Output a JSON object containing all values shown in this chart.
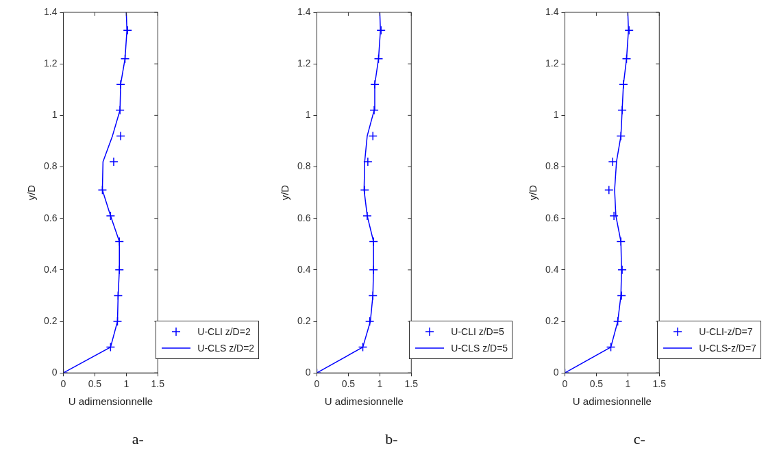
{
  "chart_data": [
    {
      "type": "scatter",
      "xlabel": "U adimensionnelle",
      "ylabel": "y/D",
      "xlim": [
        0,
        1.5
      ],
      "xticks": [
        0,
        0.5,
        1,
        1.5
      ],
      "ylim": [
        0,
        1.4
      ],
      "yticks": [
        0,
        0.2,
        0.4,
        0.6,
        0.8,
        1,
        1.2,
        1.4
      ],
      "grid": false,
      "legend": "bottom right",
      "annotations": [
        "a-"
      ],
      "series": [
        {
          "name": "U-CLI z/D=2",
          "type": "scatter",
          "marker": "cross",
          "color": "#0000ff",
          "x": [
            0,
            0.75,
            0.86,
            0.87,
            0.89,
            0.89,
            0.75,
            0.62,
            0.8,
            0.91,
            0.9,
            0.91,
            0.98,
            1.02
          ],
          "values": [
            0,
            0.1,
            0.2,
            0.3,
            0.4,
            0.51,
            0.61,
            0.71,
            0.82,
            0.92,
            1.02,
            1.12,
            1.22,
            1.33
          ]
        },
        {
          "name": "U-CLS z/D=2",
          "type": "line",
          "marker": "none",
          "line_style": "solid",
          "color": "#0000ff",
          "x": [
            0,
            0.75,
            0.86,
            0.87,
            0.89,
            0.89,
            0.75,
            0.62,
            0.63,
            0.78,
            0.9,
            0.91,
            0.98,
            1.01,
            1
          ],
          "values": [
            0,
            0.1,
            0.2,
            0.3,
            0.4,
            0.51,
            0.61,
            0.71,
            0.82,
            0.92,
            1.02,
            1.12,
            1.22,
            1.33,
            1.4
          ]
        }
      ]
    },
    {
      "type": "scatter",
      "xlabel": "U adimesionnelle",
      "ylabel": "y/D",
      "xlim": [
        0,
        1.5
      ],
      "xticks": [
        0,
        0.5,
        1,
        1.5
      ],
      "ylim": [
        0,
        1.4
      ],
      "yticks": [
        0,
        0.2,
        0.4,
        0.6,
        0.8,
        1,
        1.2,
        1.4
      ],
      "grid": false,
      "legend": "bottom right",
      "annotations": [
        "b-"
      ],
      "series": [
        {
          "name": "U-CLI z/D=5",
          "type": "scatter",
          "marker": "cross",
          "color": "#0000ff",
          "x": [
            0,
            0.73,
            0.84,
            0.89,
            0.9,
            0.9,
            0.8,
            0.76,
            0.81,
            0.89,
            0.91,
            0.92,
            0.98,
            1.02
          ],
          "values": [
            0,
            0.1,
            0.2,
            0.3,
            0.4,
            0.51,
            0.61,
            0.71,
            0.82,
            0.92,
            1.02,
            1.12,
            1.22,
            1.33
          ]
        },
        {
          "name": "U-CLS z/D=5",
          "type": "line",
          "marker": "none",
          "line_style": "solid",
          "color": "#0000ff",
          "x": [
            0,
            0.73,
            0.85,
            0.89,
            0.9,
            0.9,
            0.8,
            0.75,
            0.76,
            0.8,
            0.91,
            0.92,
            0.98,
            1.01,
            1
          ],
          "values": [
            0,
            0.1,
            0.2,
            0.3,
            0.4,
            0.51,
            0.61,
            0.71,
            0.82,
            0.92,
            1.02,
            1.12,
            1.22,
            1.33,
            1.4
          ]
        }
      ]
    },
    {
      "type": "scatter",
      "xlabel": "U adimesionnelle",
      "ylabel": "y/D",
      "xlim": [
        0,
        1.5
      ],
      "xticks": [
        0,
        0.5,
        1,
        1.5
      ],
      "ylim": [
        0,
        1.4
      ],
      "yticks": [
        0,
        0.2,
        0.4,
        0.6,
        0.8,
        1,
        1.2,
        1.4
      ],
      "grid": false,
      "legend": "bottom right",
      "annotations": [
        "c-"
      ],
      "series": [
        {
          "name": "U-CLI-z/D=7",
          "type": "scatter",
          "marker": "cross",
          "color": "#0000ff",
          "x": [
            0,
            0.73,
            0.84,
            0.9,
            0.91,
            0.89,
            0.78,
            0.7,
            0.76,
            0.89,
            0.91,
            0.93,
            0.98,
            1.02
          ],
          "values": [
            0,
            0.1,
            0.2,
            0.3,
            0.4,
            0.51,
            0.61,
            0.71,
            0.82,
            0.92,
            1.02,
            1.12,
            1.22,
            1.33
          ]
        },
        {
          "name": "U-CLS-z/D=7",
          "type": "line",
          "marker": "none",
          "line_style": "solid",
          "color": "#0000ff",
          "x": [
            0,
            0.73,
            0.84,
            0.89,
            0.9,
            0.89,
            0.81,
            0.79,
            0.82,
            0.89,
            0.91,
            0.93,
            0.98,
            1.01,
            1
          ],
          "values": [
            0,
            0.1,
            0.2,
            0.3,
            0.4,
            0.51,
            0.61,
            0.71,
            0.82,
            0.92,
            1.02,
            1.12,
            1.22,
            1.33,
            1.4
          ]
        }
      ]
    }
  ]
}
